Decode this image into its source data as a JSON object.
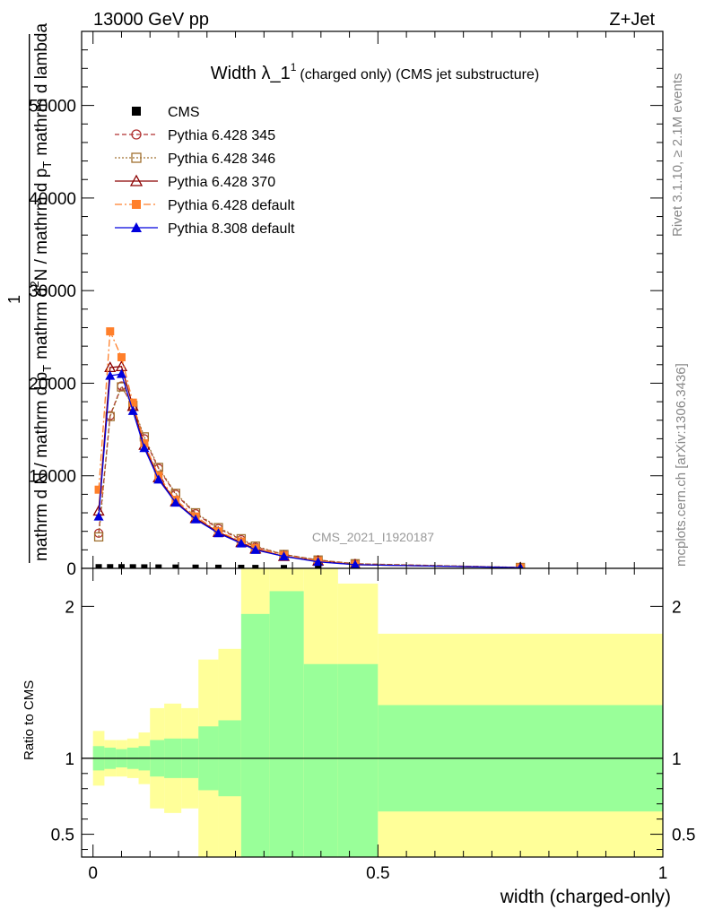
{
  "header": {
    "left": "13000 GeV pp",
    "right": "Z+Jet"
  },
  "side_labels": {
    "rivet": "Rivet 3.1.10, ≥ 2.1M events",
    "mcplots": "mcplots.cern.ch [arXiv:1306.3436]"
  },
  "chart_data": [
    {
      "type": "line",
      "title": "Width λ_1",
      "title_sup": "1",
      "subtitle": "(charged only) (CMS jet substructure)",
      "ylabel": "1 / mathrm d N / mathrm d p_T mathrm d^2N / mathrm d p_T mathrm d lambda",
      "ylabel_parts": [
        "1",
        "mathrm d N / mathrm d p",
        "T",
        "mathrm d",
        "2",
        "N",
        "mathrm d p",
        "T",
        "mathrm d lambda"
      ],
      "analysis_label": "CMS_2021_I1920187",
      "xlim": [
        -0.02,
        1.0
      ],
      "ylim": [
        0,
        58000
      ],
      "yticks": [
        0,
        10000,
        20000,
        30000,
        40000,
        50000
      ],
      "ytick_labels": [
        "0",
        "10000",
        "20000",
        "30000",
        "40000",
        "50000"
      ],
      "legend_position": "top-left",
      "series": [
        {
          "name": "CMS",
          "color": "#000000",
          "marker": "square-filled",
          "dash": "",
          "x": [
            0.01,
            0.03,
            0.05,
            0.07,
            0.09,
            0.115,
            0.145,
            0.18,
            0.22,
            0.26,
            0.285,
            0.335,
            0.395,
            0.46,
            0.75
          ],
          "y": [
            120,
            120,
            120,
            110,
            100,
            90,
            80,
            70,
            60,
            50,
            40,
            30,
            20,
            10,
            2
          ]
        },
        {
          "name": "Pythia 6.428 345",
          "color": "#b03030",
          "marker": "circle-open",
          "dash": "5,3",
          "x": [
            0.01,
            0.03,
            0.05,
            0.07,
            0.09,
            0.115,
            0.145,
            0.18,
            0.22,
            0.26,
            0.285,
            0.335,
            0.395,
            0.46,
            0.75
          ],
          "y": [
            3800,
            16500,
            19700,
            17500,
            14000,
            10800,
            8000,
            5900,
            4300,
            3100,
            2300,
            1500,
            900,
            500,
            100
          ]
        },
        {
          "name": "Pythia 6.428 346",
          "color": "#a07030",
          "marker": "square-open",
          "dash": "2,2",
          "x": [
            0.01,
            0.03,
            0.05,
            0.07,
            0.09,
            0.115,
            0.145,
            0.18,
            0.22,
            0.26,
            0.285,
            0.335,
            0.395,
            0.46,
            0.75
          ],
          "y": [
            3400,
            16400,
            19600,
            17600,
            14200,
            10900,
            8100,
            6000,
            4400,
            3200,
            2400,
            1500,
            900,
            500,
            100
          ]
        },
        {
          "name": "Pythia 6.428 370",
          "color": "#8b0000",
          "marker": "triangle-open",
          "dash": "",
          "x": [
            0.01,
            0.03,
            0.05,
            0.07,
            0.09,
            0.115,
            0.145,
            0.18,
            0.22,
            0.26,
            0.285,
            0.335,
            0.395,
            0.46,
            0.75
          ],
          "y": [
            6200,
            21700,
            21800,
            17500,
            13300,
            9800,
            7200,
            5400,
            3900,
            2800,
            2100,
            1300,
            800,
            400,
            80
          ]
        },
        {
          "name": "Pythia 6.428 default",
          "color": "#ff7f2a",
          "marker": "square-filled",
          "dash": "8,3,2,3",
          "x": [
            0.01,
            0.03,
            0.05,
            0.07,
            0.09,
            0.115,
            0.145,
            0.18,
            0.22,
            0.26,
            0.285,
            0.335,
            0.395,
            0.46,
            0.75
          ],
          "y": [
            8500,
            25600,
            22800,
            17900,
            13500,
            10000,
            7400,
            5600,
            4000,
            2900,
            2200,
            1400,
            800,
            400,
            80
          ]
        },
        {
          "name": "Pythia 8.308 default",
          "color": "#0000dd",
          "marker": "triangle-filled",
          "dash": "",
          "x": [
            0.01,
            0.03,
            0.05,
            0.07,
            0.09,
            0.115,
            0.145,
            0.18,
            0.22,
            0.26,
            0.285,
            0.335,
            0.395,
            0.46,
            0.75
          ],
          "y": [
            5600,
            20800,
            21000,
            17000,
            13000,
            9600,
            7100,
            5300,
            3800,
            2700,
            2000,
            1300,
            700,
            400,
            80
          ]
        }
      ]
    },
    {
      "type": "area",
      "ylabel": "Ratio to CMS",
      "xlabel": "width (charged-only)",
      "xlim": [
        -0.02,
        1.0
      ],
      "ylim": [
        0.35,
        2.25
      ],
      "xticks": [
        0,
        0.5,
        1
      ],
      "xtick_labels": [
        "0",
        "0.5",
        "1"
      ],
      "yticks": [
        0.5,
        1,
        2
      ],
      "ytick_labels": [
        "0.5",
        "1",
        "2"
      ],
      "reference_line": 1,
      "bins": [
        {
          "lo": 0.0,
          "hi": 0.02,
          "stat_lo": 0.92,
          "stat_hi": 1.08,
          "tot_lo": 0.82,
          "tot_hi": 1.18
        },
        {
          "lo": 0.02,
          "hi": 0.04,
          "stat_lo": 0.93,
          "stat_hi": 1.07,
          "tot_lo": 0.88,
          "tot_hi": 1.12
        },
        {
          "lo": 0.04,
          "hi": 0.06,
          "stat_lo": 0.94,
          "stat_hi": 1.06,
          "tot_lo": 0.88,
          "tot_hi": 1.12
        },
        {
          "lo": 0.06,
          "hi": 0.08,
          "stat_lo": 0.93,
          "stat_hi": 1.07,
          "tot_lo": 0.87,
          "tot_hi": 1.13
        },
        {
          "lo": 0.08,
          "hi": 0.1,
          "stat_lo": 0.92,
          "stat_hi": 1.08,
          "tot_lo": 0.83,
          "tot_hi": 1.17
        },
        {
          "lo": 0.1,
          "hi": 0.125,
          "stat_lo": 0.88,
          "stat_hi": 1.12,
          "tot_lo": 0.67,
          "tot_hi": 1.33
        },
        {
          "lo": 0.125,
          "hi": 0.155,
          "stat_lo": 0.87,
          "stat_hi": 1.13,
          "tot_lo": 0.64,
          "tot_hi": 1.36
        },
        {
          "lo": 0.155,
          "hi": 0.185,
          "stat_lo": 0.87,
          "stat_hi": 1.13,
          "tot_lo": 0.67,
          "tot_hi": 1.33
        },
        {
          "lo": 0.185,
          "hi": 0.22,
          "stat_lo": 0.79,
          "stat_hi": 1.21,
          "tot_lo": 0.35,
          "tot_hi": 1.65
        },
        {
          "lo": 0.22,
          "hi": 0.26,
          "stat_lo": 0.75,
          "stat_hi": 1.25,
          "tot_lo": 0.35,
          "tot_hi": 1.72
        },
        {
          "lo": 0.26,
          "hi": 0.31,
          "stat_lo": 0.35,
          "stat_hi": 1.95,
          "tot_lo": 0.35,
          "tot_hi": 2.25
        },
        {
          "lo": 0.31,
          "hi": 0.37,
          "stat_lo": 0.35,
          "stat_hi": 2.1,
          "tot_lo": 0.35,
          "tot_hi": 2.25
        },
        {
          "lo": 0.37,
          "hi": 0.43,
          "stat_lo": 0.35,
          "stat_hi": 1.62,
          "tot_lo": 0.35,
          "tot_hi": 2.25
        },
        {
          "lo": 0.43,
          "hi": 0.5,
          "stat_lo": 0.35,
          "stat_hi": 1.62,
          "tot_lo": 0.35,
          "tot_hi": 2.15
        },
        {
          "lo": 0.5,
          "hi": 1.0,
          "stat_lo": 0.65,
          "stat_hi": 1.35,
          "tot_lo": 0.35,
          "tot_hi": 1.82
        }
      ],
      "colors": {
        "stat": "#99ff99",
        "total": "#ffff99",
        "reference": "#000000"
      }
    }
  ]
}
